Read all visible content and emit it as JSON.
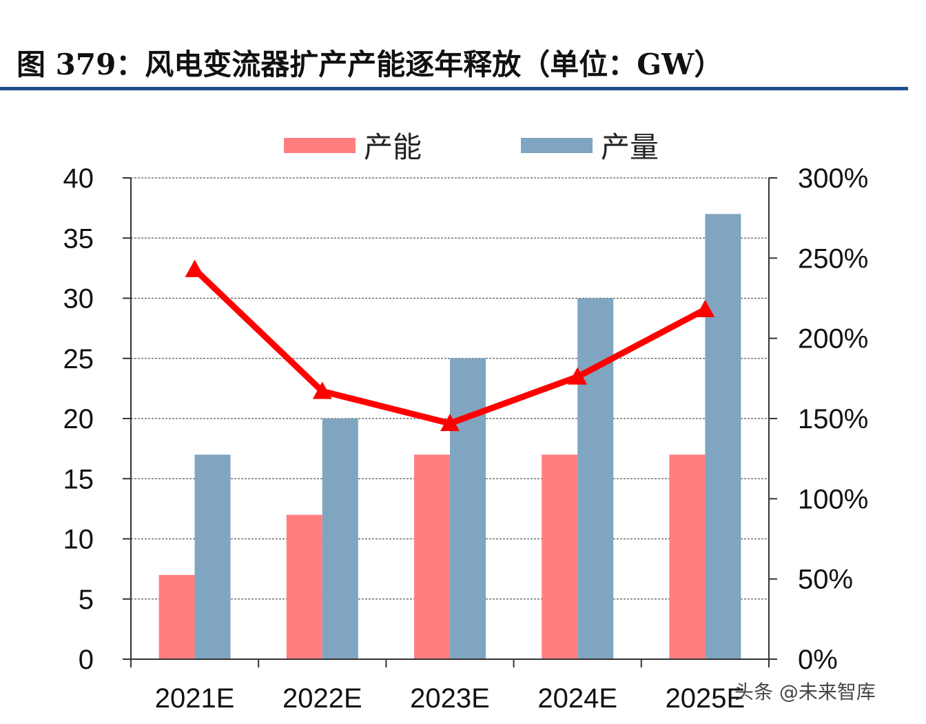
{
  "figure_title": "图 379：风电变流器扩产产能逐年释放（单位：GW）",
  "watermark": "头条 @未来智库",
  "colors": {
    "capacity": "#ff7f7f",
    "output": "#7fa5c0",
    "line": "#ff0000",
    "rule": "#1f4e8c"
  },
  "chart_data": {
    "type": "bar",
    "title": "",
    "categories": [
      "2021E",
      "2022E",
      "2023E",
      "2024E",
      "2025E"
    ],
    "series": [
      {
        "name": "产能",
        "type": "bar",
        "axis": "left",
        "values": [
          7,
          12,
          17,
          17,
          17
        ]
      },
      {
        "name": "产量",
        "type": "bar",
        "axis": "left",
        "values": [
          17,
          20,
          25,
          30,
          37
        ]
      },
      {
        "type": "line",
        "axis": "right",
        "values": [
          243,
          167,
          147,
          176,
          218
        ]
      }
    ],
    "ylim": [
      0,
      40
    ],
    "yticks": [
      0,
      5,
      10,
      15,
      20,
      25,
      30,
      35,
      40
    ],
    "y2lim": [
      0,
      300
    ],
    "y2ticks": [
      "0%",
      "50%",
      "100%",
      "150%",
      "200%",
      "250%",
      "300%"
    ],
    "grid": true,
    "legend": "top-center"
  }
}
